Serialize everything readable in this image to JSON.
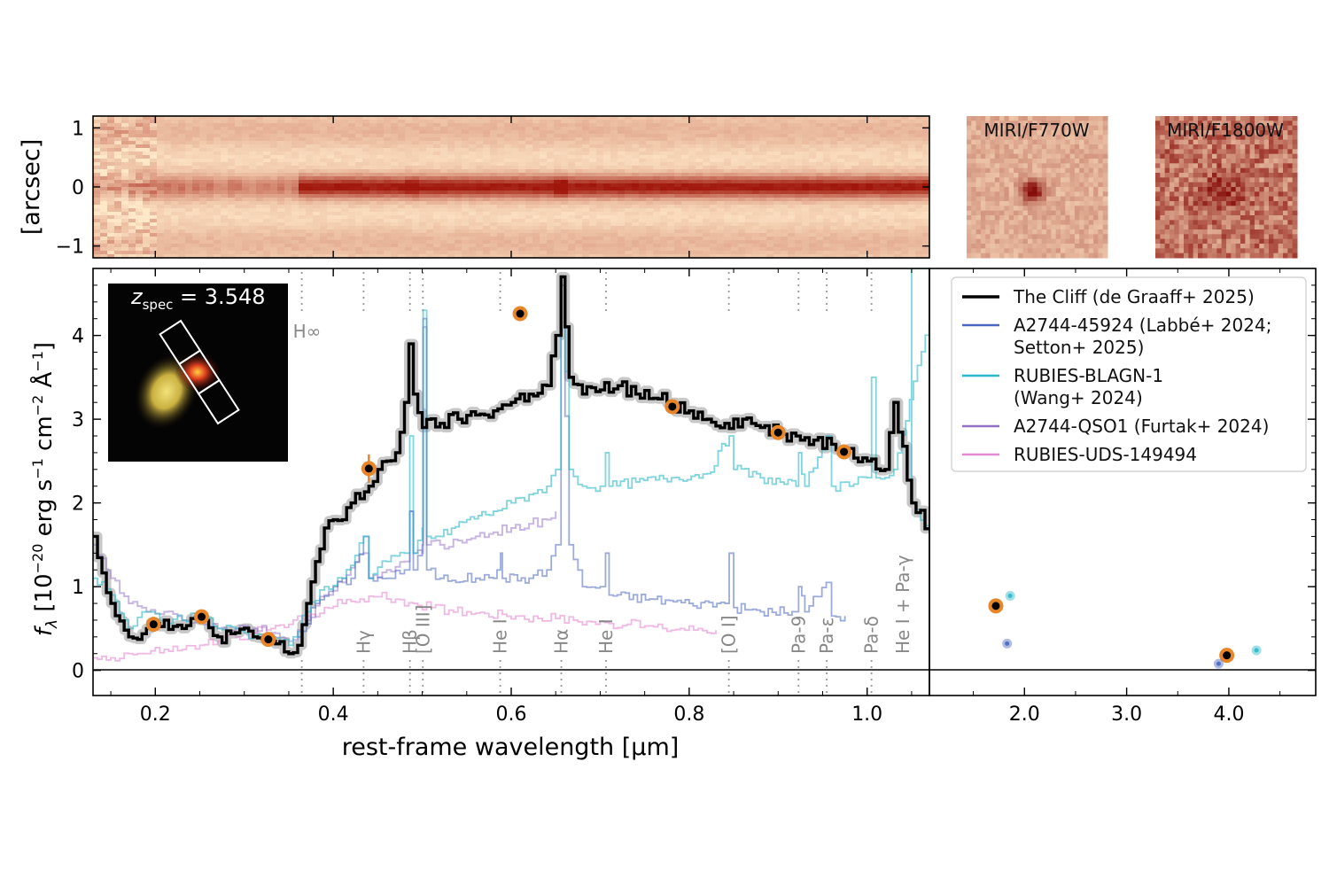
{
  "chart_data": [
    {
      "panel": "2D spectrum",
      "type": "heatmap",
      "ylabel": "[arcsec]",
      "y_ticks": [
        "1",
        "0",
        "−1"
      ],
      "y_range": [
        -1.2,
        1.2
      ],
      "colormap": "white-orange-dark red",
      "notes": "trace brightest around 0 arcsec"
    },
    {
      "panel": "MIRI cutouts",
      "type": "heatmap",
      "images": [
        {
          "label": "MIRI/F770W"
        },
        {
          "label": "MIRI/F1800W"
        }
      ]
    },
    {
      "panel": "main spectrum",
      "type": "line",
      "xlabel": "rest-frame wavelength [μm]",
      "ylabel_parts": {
        "f": "f",
        "lambda": "λ",
        "open": " [10",
        "exp1": "−20",
        "mid": " erg s",
        "exp2": "−1",
        "cm": " cm",
        "exp3": "−2",
        "ang": " Å",
        "exp4": "−1",
        "close": "]"
      },
      "xlim": [
        0.13,
        1.07
      ],
      "ylim": [
        -0.3,
        4.8
      ],
      "x_ticks": [
        "0.2",
        "0.4",
        "0.6",
        "0.8",
        "1.0"
      ],
      "y_ticks": [
        "0",
        "1",
        "2",
        "3",
        "4"
      ],
      "inset_label": {
        "z": "z",
        "sub": "spec",
        "eq": " = 3.548"
      },
      "lines": [
        {
          "label": "H∞",
          "x": 0.3646,
          "position": "upper"
        },
        {
          "label": "Hγ",
          "x": 0.4341,
          "position": "lower"
        },
        {
          "label": "Hβ",
          "x": 0.4862,
          "position": "lower"
        },
        {
          "label": "[O III]",
          "x": 0.5007,
          "position": "lower"
        },
        {
          "label": "He I",
          "x": 0.5876,
          "position": "lower"
        },
        {
          "label": "Hα",
          "x": 0.6563,
          "position": "lower"
        },
        {
          "label": "He I",
          "x": 0.7065,
          "position": "lower"
        },
        {
          "label": "[O I]",
          "x": 0.8446,
          "position": "lower"
        },
        {
          "label": "Pa-9",
          "x": 0.9229,
          "position": "lower"
        },
        {
          "label": "Pa-ε",
          "x": 0.9546,
          "position": "lower"
        },
        {
          "label": "Pa-δ",
          "x": 1.0049,
          "position": "lower"
        },
        {
          "label": "He I + Pa-γ",
          "x": 1.083,
          "position": "lower"
        }
      ],
      "series": [
        {
          "name": "The Cliff (de Graaff+ 2025)",
          "color": "#000000",
          "x": [
            0.13,
            0.15,
            0.17,
            0.19,
            0.21,
            0.23,
            0.25,
            0.27,
            0.29,
            0.31,
            0.33,
            0.35,
            0.36,
            0.37,
            0.38,
            0.39,
            0.4,
            0.41,
            0.42,
            0.43,
            0.44,
            0.45,
            0.46,
            0.47,
            0.48,
            0.485,
            0.49,
            0.5,
            0.52,
            0.54,
            0.56,
            0.58,
            0.6,
            0.62,
            0.64,
            0.65,
            0.656,
            0.665,
            0.68,
            0.7,
            0.72,
            0.74,
            0.76,
            0.78,
            0.8,
            0.82,
            0.84,
            0.86,
            0.88,
            0.9,
            0.92,
            0.94,
            0.96,
            0.98,
            1.0,
            1.02,
            1.03,
            1.05,
            1.07
          ],
          "y": [
            1.6,
            0.8,
            0.4,
            0.5,
            0.6,
            0.5,
            0.6,
            0.4,
            0.45,
            0.4,
            0.35,
            0.2,
            0.3,
            0.8,
            1.3,
            1.7,
            1.8,
            1.8,
            2.0,
            2.05,
            2.2,
            2.4,
            2.5,
            2.6,
            3.2,
            3.9,
            3.3,
            2.9,
            2.95,
            3.0,
            3.05,
            3.1,
            3.2,
            3.3,
            3.4,
            4.0,
            4.7,
            3.5,
            3.3,
            3.35,
            3.4,
            3.3,
            3.25,
            3.2,
            3.1,
            3.0,
            2.95,
            3.0,
            2.9,
            2.85,
            2.8,
            2.75,
            2.7,
            2.65,
            2.5,
            2.4,
            3.2,
            2.0,
            1.7
          ]
        },
        {
          "name": "A2744-45924 (Labbé+ 2024; Setton+ 2025)",
          "color": "#4a66c0",
          "x": [
            0.36,
            0.38,
            0.4,
            0.42,
            0.434,
            0.44,
            0.46,
            0.48,
            0.486,
            0.49,
            0.5,
            0.501,
            0.505,
            0.52,
            0.56,
            0.58,
            0.588,
            0.59,
            0.62,
            0.64,
            0.65,
            0.656,
            0.665,
            0.68,
            0.7,
            0.706,
            0.71,
            0.76,
            0.8,
            0.84,
            0.845,
            0.85,
            0.88,
            0.92,
            0.923,
            0.93,
            0.954,
            0.96,
            0.975
          ],
          "y": [
            0.4,
            0.8,
            1.0,
            1.1,
            1.6,
            1.1,
            1.1,
            1.2,
            1.9,
            1.2,
            1.5,
            4.2,
            1.2,
            1.1,
            1.1,
            1.1,
            1.4,
            1.1,
            1.1,
            1.2,
            1.5,
            4.6,
            1.5,
            1.0,
            1.0,
            1.4,
            0.9,
            0.85,
            0.8,
            0.8,
            1.4,
            0.75,
            0.7,
            0.7,
            1.0,
            0.7,
            1.05,
            0.65,
            0.65
          ]
        },
        {
          "name": "RUBIES-BLAGN-1 (Wang+ 2024)",
          "color": "#2bb8c8",
          "x": [
            0.13,
            0.15,
            0.17,
            0.19,
            0.21,
            0.23,
            0.25,
            0.27,
            0.29,
            0.31,
            0.33,
            0.35,
            0.37,
            0.39,
            0.41,
            0.434,
            0.44,
            0.46,
            0.48,
            0.486,
            0.49,
            0.5,
            0.501,
            0.505,
            0.52,
            0.55,
            0.58,
            0.6,
            0.62,
            0.64,
            0.65,
            0.656,
            0.665,
            0.68,
            0.7,
            0.706,
            0.71,
            0.74,
            0.78,
            0.82,
            0.845,
            0.85,
            0.88,
            0.92,
            0.923,
            0.93,
            0.954,
            0.96,
            0.98,
            1.0,
            1.005,
            1.01,
            1.03,
            1.083,
            1.05,
            1.07
          ],
          "y": [
            1.1,
            0.9,
            0.5,
            0.7,
            0.6,
            0.6,
            0.7,
            0.5,
            0.5,
            0.4,
            0.4,
            0.3,
            0.7,
            1.0,
            1.1,
            1.6,
            1.1,
            1.3,
            1.4,
            2.8,
            1.4,
            1.7,
            4.3,
            1.6,
            1.6,
            1.8,
            1.9,
            2.0,
            2.1,
            2.2,
            2.4,
            4.7,
            2.4,
            2.2,
            2.2,
            2.6,
            2.2,
            2.25,
            2.3,
            2.35,
            2.8,
            2.4,
            2.3,
            2.2,
            2.6,
            2.2,
            2.8,
            2.2,
            2.2,
            2.3,
            3.5,
            2.3,
            2.4,
            4.8,
            2.0,
            1.7
          ]
        },
        {
          "name": "A2744-QSO1 (Furtak+ 2024)",
          "color": "#9370c8",
          "x": [
            0.13,
            0.15,
            0.17,
            0.19,
            0.21,
            0.23,
            0.25,
            0.27,
            0.29,
            0.31,
            0.33,
            0.35,
            0.37,
            0.39,
            0.41,
            0.434,
            0.44,
            0.46,
            0.48,
            0.486,
            0.49,
            0.5,
            0.501,
            0.505,
            0.52,
            0.54,
            0.56,
            0.58,
            0.6,
            0.62,
            0.64,
            0.65
          ],
          "y": [
            1.5,
            1.1,
            0.8,
            0.7,
            0.7,
            0.6,
            0.6,
            0.5,
            0.5,
            0.5,
            0.45,
            0.35,
            0.6,
            0.9,
            1.05,
            1.4,
            1.1,
            1.2,
            1.3,
            1.9,
            1.4,
            1.4,
            4.1,
            1.5,
            1.5,
            1.55,
            1.6,
            1.65,
            1.7,
            1.75,
            1.8,
            1.9
          ]
        },
        {
          "name": "RUBIES-UDS-149494",
          "color": "#e58ad2",
          "x": [
            0.13,
            0.15,
            0.17,
            0.19,
            0.21,
            0.23,
            0.25,
            0.27,
            0.29,
            0.31,
            0.33,
            0.35,
            0.37,
            0.39,
            0.41,
            0.43,
            0.45,
            0.47,
            0.49,
            0.51,
            0.53,
            0.55,
            0.57,
            0.59,
            0.61,
            0.63,
            0.65,
            0.67,
            0.69,
            0.71,
            0.73,
            0.75,
            0.77,
            0.79,
            0.81,
            0.83
          ],
          "y": [
            0.15,
            0.15,
            0.2,
            0.2,
            0.25,
            0.25,
            0.3,
            0.35,
            0.4,
            0.45,
            0.5,
            0.55,
            0.65,
            0.75,
            0.8,
            0.85,
            0.88,
            0.85,
            0.8,
            0.75,
            0.72,
            0.7,
            0.68,
            0.67,
            0.65,
            0.62,
            0.62,
            0.6,
            0.58,
            0.56,
            0.55,
            0.53,
            0.5,
            0.5,
            0.5,
            0.48
          ]
        }
      ],
      "photometry": [
        {
          "x": 0.198,
          "y": 0.55
        },
        {
          "x": 0.252,
          "y": 0.64
        },
        {
          "x": 0.327,
          "y": 0.37
        },
        {
          "x": 0.44,
          "y": 2.41
        },
        {
          "x": 0.61,
          "y": 4.26
        },
        {
          "x": 0.781,
          "y": 3.15
        },
        {
          "x": 0.9,
          "y": 2.84
        },
        {
          "x": 0.974,
          "y": 2.61
        }
      ]
    },
    {
      "panel": "MIRI photometry",
      "type": "scatter",
      "x_ticks": [
        "2.0",
        "3.0",
        "4.0"
      ],
      "xlim": [
        1.07,
        4.85
      ],
      "ylim": [
        -0.3,
        4.8
      ],
      "points": [
        {
          "series": "The Cliff (de Graaff+ 2025)",
          "x": 1.72,
          "y": 0.77
        },
        {
          "series": "The Cliff (de Graaff+ 2025)",
          "x": 3.98,
          "y": 0.18
        },
        {
          "series": "RUBIES-BLAGN-1 (Wang+ 2024)",
          "x": 1.86,
          "y": 0.89
        },
        {
          "series": "RUBIES-BLAGN-1 (Wang+ 2024)",
          "x": 4.27,
          "y": 0.24
        },
        {
          "series": "A2744-45924 (Labbé+ 2024; Setton+ 2025)",
          "x": 1.83,
          "y": 0.32
        },
        {
          "series": "A2744-45924 (Labbé+ 2024; Setton+ 2025)",
          "x": 3.9,
          "y": 0.08
        }
      ]
    }
  ],
  "legend": {
    "entries": [
      {
        "lines": [
          "The Cliff (de Graaff+ 2025)"
        ],
        "color": "#000000"
      },
      {
        "lines": [
          "A2744-45924 (Labbé+ 2024;",
          " Setton+ 2025)"
        ],
        "color": "#4a66c0"
      },
      {
        "lines": [
          "RUBIES-BLAGN-1",
          " (Wang+ 2024)"
        ],
        "color": "#2bb8c8"
      },
      {
        "lines": [
          "A2744-QSO1 (Furtak+ 2024)"
        ],
        "color": "#9370c8"
      },
      {
        "lines": [
          "RUBIES-UDS-149494"
        ],
        "color": "#e58ad2"
      }
    ]
  },
  "colors": {
    "photometry_marker": "#e8862a",
    "spectrum_band": "#c8c8c8",
    "line_marker": "#999999"
  }
}
